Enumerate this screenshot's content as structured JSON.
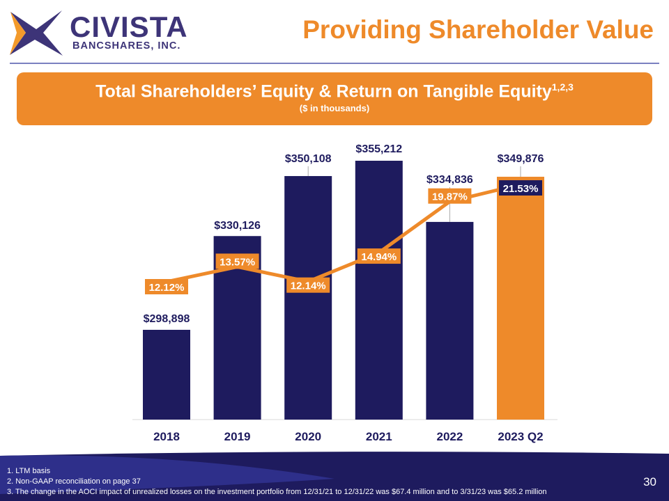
{
  "header": {
    "brand": "CIVISTA",
    "brand_sub": "BANCSHARES, INC.",
    "title": "Providing Shareholder Value"
  },
  "banner": {
    "title": "Total Shareholders’ Equity & Return on Tangible Equity",
    "superscript": "1,2,3",
    "subtitle": "($ in thousands)"
  },
  "chart_data": {
    "type": "bar",
    "categories": [
      "2018",
      "2019",
      "2020",
      "2021",
      "2022",
      "2023 Q2"
    ],
    "series": [
      {
        "name": "Total Shareholders’ Equity",
        "type": "bar",
        "values": [
          298898,
          330126,
          350108,
          355212,
          334836,
          349876
        ],
        "labels": [
          "$298,898",
          "$330,126",
          "$350,108",
          "$355,212",
          "$334,836",
          "$349,876"
        ]
      },
      {
        "name": "Return on Tangible Equity",
        "type": "line",
        "values": [
          12.12,
          13.57,
          12.14,
          14.94,
          19.87,
          21.53
        ],
        "labels": [
          "12.12%",
          "13.57%",
          "12.14%",
          "14.94%",
          "19.87%",
          "21.53%"
        ]
      }
    ],
    "ylim": [
      269000,
      360000
    ],
    "y2lim": [
      -1.2,
      35
    ],
    "colors": {
      "bar": "#1e1b5e",
      "highlight": "#ee8a2a",
      "line": "#ee8a2a"
    }
  },
  "footnotes": [
    "1. LTM basis",
    "2. Non-GAAP reconciliation on page 37",
    "3. The change in the AOCI impact of unrealized losses on the investment portfolio from 12/31/21 to 12/31/22 was $67.4 million  and  to 3/31/23 was $65.2 million"
  ],
  "page_number": "30"
}
